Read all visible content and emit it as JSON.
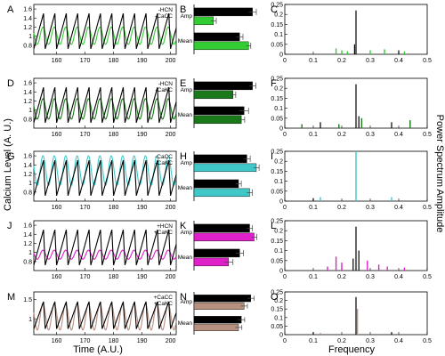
{
  "figure": {
    "y_label_left": "Calcium Level (A. U.)",
    "x_label_left": "Time (A.U.)",
    "y_label_right": "Power Spectrum Amplitude",
    "x_label_right": "Frequency"
  },
  "chart_data": [
    {
      "type": "line",
      "panel": "A",
      "legend": [
        "-HCN",
        "-CaCC"
      ],
      "xlim": [
        152,
        202
      ],
      "ylim": [
        0.6,
        1.7
      ],
      "xticks": [
        160,
        170,
        180,
        190,
        200
      ],
      "yticks": [
        0.8,
        1,
        1.2,
        1.4,
        1.6
      ],
      "period": 4,
      "series_colors": [
        "#000000",
        "#33cc33"
      ],
      "series": [
        {
          "name": "-HCN",
          "min": 0.72,
          "max": 1.5
        },
        {
          "name": "-CaCC",
          "min": 0.82,
          "max": 1.2
        }
      ]
    },
    {
      "type": "bar",
      "panel": "B",
      "categories": [
        "Amp",
        "Mean"
      ],
      "xlim": [
        0,
        1.2
      ],
      "colors": [
        "#000000",
        "#33cc33"
      ],
      "values": [
        [
          1.05,
          0.35
        ],
        [
          0.82,
          0.98
        ]
      ],
      "errors": [
        [
          0.07,
          0.05
        ],
        [
          0.06,
          0.04
        ]
      ]
    },
    {
      "type": "bar",
      "panel": "C",
      "xlim": [
        0,
        0.5
      ],
      "ylim": [
        0,
        0.25
      ],
      "xticks": [
        0,
        0.1,
        0.2,
        0.3,
        0.4,
        0.5
      ],
      "yticks": [
        0,
        0.05,
        0.1,
        0.15,
        0.2,
        0.25
      ],
      "series_colors": [
        "#000000",
        "#33cc33"
      ],
      "peaks": [
        {
          "f": 0.25,
          "h": 0.22,
          "s": 0
        },
        {
          "f": 0.245,
          "h": 0.05,
          "s": 0
        },
        {
          "f": 0.4,
          "h": 0.02,
          "s": 0
        },
        {
          "f": 0.18,
          "h": 0.03,
          "s": 1
        },
        {
          "f": 0.2,
          "h": 0.02,
          "s": 1
        },
        {
          "f": 0.22,
          "h": 0.015,
          "s": 1
        },
        {
          "f": 0.3,
          "h": 0.02,
          "s": 1
        },
        {
          "f": 0.35,
          "h": 0.025,
          "s": 1
        },
        {
          "f": 0.42,
          "h": 0.015,
          "s": 1
        }
      ]
    },
    {
      "type": "line",
      "panel": "D",
      "legend": [
        "-HCN",
        "-CaKC"
      ],
      "xlim": [
        152,
        202
      ],
      "ylim": [
        0.6,
        1.7
      ],
      "xticks": [
        160,
        170,
        180,
        190,
        200
      ],
      "yticks": [
        0.8,
        1,
        1.2,
        1.4,
        1.6
      ],
      "period": 4,
      "series_colors": [
        "#000000",
        "#1a7a1a"
      ],
      "series": [
        {
          "name": "-HCN",
          "min": 0.72,
          "max": 1.5
        },
        {
          "name": "-CaKC",
          "min": 0.8,
          "max": 1.25
        }
      ]
    },
    {
      "type": "bar",
      "panel": "E",
      "categories": [
        "Amp",
        "Mean"
      ],
      "xlim": [
        0,
        1.2
      ],
      "colors": [
        "#000000",
        "#1a7a1a"
      ],
      "values": [
        [
          1.05,
          0.7
        ],
        [
          0.9,
          0.85
        ]
      ],
      "errors": [
        [
          0.06,
          0.05
        ],
        [
          0.08,
          0.06
        ]
      ]
    },
    {
      "type": "bar",
      "panel": "F",
      "xlim": [
        0,
        0.5
      ],
      "ylim": [
        0,
        0.25
      ],
      "xticks": [
        0,
        0.1,
        0.2,
        0.3,
        0.4,
        0.5
      ],
      "yticks": [
        0,
        0.05,
        0.1,
        0.15,
        0.2,
        0.25
      ],
      "series_colors": [
        "#000000",
        "#1a7a1a"
      ],
      "peaks": [
        {
          "f": 0.25,
          "h": 0.22,
          "s": 0
        },
        {
          "f": 0.26,
          "h": 0.06,
          "s": 0
        },
        {
          "f": 0.125,
          "h": 0.03,
          "s": 0
        },
        {
          "f": 0.375,
          "h": 0.03,
          "s": 0
        },
        {
          "f": 0.27,
          "h": 0.05,
          "s": 1
        },
        {
          "f": 0.06,
          "h": 0.02,
          "s": 1
        },
        {
          "f": 0.44,
          "h": 0.04,
          "s": 1
        },
        {
          "f": 0.19,
          "h": 0.02,
          "s": 1
        }
      ]
    },
    {
      "type": "line",
      "panel": "G",
      "legend": [
        "-CaCC",
        "-CaKC"
      ],
      "xlim": [
        152,
        202
      ],
      "ylim": [
        0.6,
        1.7
      ],
      "xticks": [
        160,
        170,
        180,
        190,
        200
      ],
      "yticks": [
        0.8,
        1,
        1.2,
        1.4,
        1.6
      ],
      "period": 4,
      "series_colors": [
        "#000000",
        "#40c8c8"
      ],
      "series": [
        {
          "name": "-CaCC",
          "min": 0.72,
          "max": 1.5
        },
        {
          "name": "-CaKC",
          "min": 0.95,
          "max": 1.6
        }
      ]
    },
    {
      "type": "bar",
      "panel": "H",
      "categories": [
        "Amp",
        "Mean"
      ],
      "xlim": [
        0,
        1.2
      ],
      "colors": [
        "#000000",
        "#40c8c8"
      ],
      "values": [
        [
          0.95,
          1.12
        ],
        [
          0.8,
          1.0
        ]
      ],
      "errors": [
        [
          0.06,
          0.05
        ],
        [
          0.05,
          0.05
        ]
      ]
    },
    {
      "type": "bar",
      "panel": "I",
      "xlim": [
        0,
        0.5
      ],
      "ylim": [
        0,
        0.25
      ],
      "xticks": [
        0,
        0.1,
        0.2,
        0.3,
        0.4,
        0.5
      ],
      "yticks": [
        0,
        0.05,
        0.1,
        0.15,
        0.2,
        0.25
      ],
      "series_colors": [
        "#000000",
        "#40c8c8"
      ],
      "peaks": [
        {
          "f": 0.25,
          "h": 0.25,
          "s": 1
        },
        {
          "f": 0.125,
          "h": 0.02,
          "s": 1
        },
        {
          "f": 0.375,
          "h": 0.02,
          "s": 1
        },
        {
          "f": 0.1,
          "h": 0.015,
          "s": 0
        }
      ]
    },
    {
      "type": "line",
      "panel": "J",
      "legend": [
        "+HCN",
        "+CaKC"
      ],
      "xlim": [
        152,
        202
      ],
      "ylim": [
        0.6,
        1.7
      ],
      "xticks": [
        160,
        170,
        180,
        190,
        200
      ],
      "yticks": [
        0.8,
        1,
        1.2,
        1.4,
        1.6
      ],
      "period": 4,
      "series_colors": [
        "#000000",
        "#e020c8"
      ],
      "series": [
        {
          "name": "+HCN",
          "min": 0.72,
          "max": 1.5
        },
        {
          "name": "+CaKC",
          "min": 0.85,
          "max": 1.05
        }
      ]
    },
    {
      "type": "bar",
      "panel": "K",
      "categories": [
        "Amp",
        "Mean"
      ],
      "xlim": [
        0,
        1.2
      ],
      "colors": [
        "#000000",
        "#e020c8"
      ],
      "values": [
        [
          1.0,
          1.08
        ],
        [
          0.82,
          0.62
        ]
      ],
      "errors": [
        [
          0.05,
          0.05
        ],
        [
          0.07,
          0.08
        ]
      ]
    },
    {
      "type": "bar",
      "panel": "L",
      "xlim": [
        0,
        0.5
      ],
      "ylim": [
        0,
        0.25
      ],
      "xticks": [
        0,
        0.1,
        0.2,
        0.3,
        0.4,
        0.5
      ],
      "yticks": [
        0,
        0.05,
        0.1,
        0.15,
        0.2,
        0.25
      ],
      "series_colors": [
        "#000000",
        "#e020c8"
      ],
      "peaks": [
        {
          "f": 0.25,
          "h": 0.22,
          "s": 0
        },
        {
          "f": 0.26,
          "h": 0.1,
          "s": 0
        },
        {
          "f": 0.24,
          "h": 0.06,
          "s": 0
        },
        {
          "f": 0.18,
          "h": 0.07,
          "s": 1
        },
        {
          "f": 0.2,
          "h": 0.04,
          "s": 1
        },
        {
          "f": 0.29,
          "h": 0.05,
          "s": 1
        },
        {
          "f": 0.33,
          "h": 0.03,
          "s": 1
        },
        {
          "f": 0.15,
          "h": 0.02,
          "s": 1
        },
        {
          "f": 0.36,
          "h": 0.02,
          "s": 1
        },
        {
          "f": 0.42,
          "h": 0.015,
          "s": 1
        }
      ]
    },
    {
      "type": "line",
      "panel": "M",
      "legend": [
        "+CaCC",
        "+CaKC"
      ],
      "xlim": [
        152,
        202
      ],
      "ylim": [
        0.6,
        1.7
      ],
      "xticks": [
        160,
        170,
        180,
        190,
        200
      ],
      "yticks": [
        1,
        1.5
      ],
      "period": 4,
      "series_colors": [
        "#000000",
        "#b89080"
      ],
      "series": [
        {
          "name": "+CaCC",
          "min": 0.75,
          "max": 1.45
        },
        {
          "name": "+CaKC",
          "min": 0.72,
          "max": 1.4
        }
      ]
    },
    {
      "type": "bar",
      "panel": "N",
      "categories": [
        "Amp",
        "Mean"
      ],
      "xlim": [
        0,
        1.2
      ],
      "colors": [
        "#000000",
        "#b89080"
      ],
      "values": [
        [
          1.02,
          0.9
        ],
        [
          0.85,
          0.8
        ]
      ],
      "errors": [
        [
          0.06,
          0.06
        ],
        [
          0.06,
          0.06
        ]
      ]
    },
    {
      "type": "bar",
      "panel": "O",
      "xlim": [
        0,
        0.5
      ],
      "ylim": [
        0,
        0.25
      ],
      "xticks": [
        0,
        0.1,
        0.2,
        0.3,
        0.4,
        0.5
      ],
      "yticks": [
        0,
        0.05,
        0.1,
        0.15,
        0.2,
        0.25
      ],
      "series_colors": [
        "#000000",
        "#b89080"
      ],
      "peaks": [
        {
          "f": 0.25,
          "h": 0.22,
          "s": 0
        },
        {
          "f": 0.255,
          "h": 0.15,
          "s": 1
        },
        {
          "f": 0.1,
          "h": 0.015,
          "s": 0
        },
        {
          "f": 0.375,
          "h": 0.015,
          "s": 0
        },
        {
          "f": 0.125,
          "h": 0.01,
          "s": 1
        }
      ]
    }
  ]
}
